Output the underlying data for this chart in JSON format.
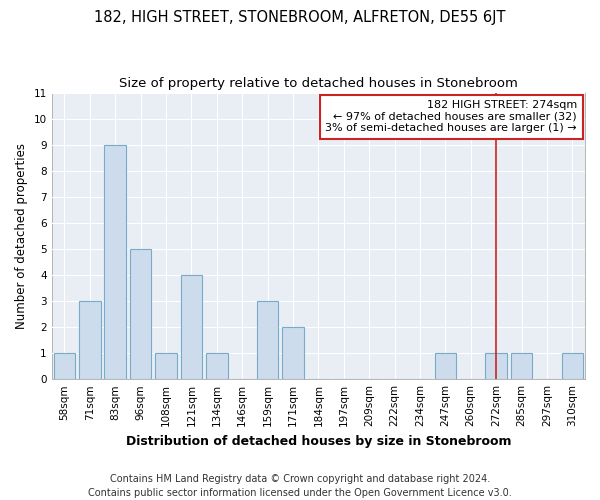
{
  "title": "182, HIGH STREET, STONEBROOM, ALFRETON, DE55 6JT",
  "subtitle": "Size of property relative to detached houses in Stonebroom",
  "xlabel": "Distribution of detached houses by size in Stonebroom",
  "ylabel": "Number of detached properties",
  "categories": [
    "58sqm",
    "71sqm",
    "83sqm",
    "96sqm",
    "108sqm",
    "121sqm",
    "134sqm",
    "146sqm",
    "159sqm",
    "171sqm",
    "184sqm",
    "197sqm",
    "209sqm",
    "222sqm",
    "234sqm",
    "247sqm",
    "260sqm",
    "272sqm",
    "285sqm",
    "297sqm",
    "310sqm"
  ],
  "values": [
    1,
    3,
    9,
    5,
    1,
    4,
    1,
    0,
    3,
    2,
    0,
    0,
    0,
    0,
    0,
    1,
    0,
    1,
    1,
    0,
    1
  ],
  "bar_color": "#ccdcec",
  "bar_edge_color": "#7aaaca",
  "vline_x_index": 17,
  "vline_color": "#cc2222",
  "annotation_line1": "182 HIGH STREET: 274sqm",
  "annotation_line2": "← 97% of detached houses are smaller (32)",
  "annotation_line3": "3% of semi-detached houses are larger (1) →",
  "annotation_box_color": "#cc2222",
  "ylim": [
    0,
    11
  ],
  "yticks": [
    0,
    1,
    2,
    3,
    4,
    5,
    6,
    7,
    8,
    9,
    10,
    11
  ],
  "footer_text": "Contains HM Land Registry data © Crown copyright and database right 2024.\nContains public sector information licensed under the Open Government Licence v3.0.",
  "bg_color": "#ffffff",
  "plot_bg_color": "#e8eef4",
  "grid_color": "#ffffff",
  "title_fontsize": 10.5,
  "subtitle_fontsize": 9.5,
  "annotation_fontsize": 8,
  "tick_fontsize": 7.5,
  "ylabel_fontsize": 8.5,
  "xlabel_fontsize": 9,
  "footer_fontsize": 7
}
